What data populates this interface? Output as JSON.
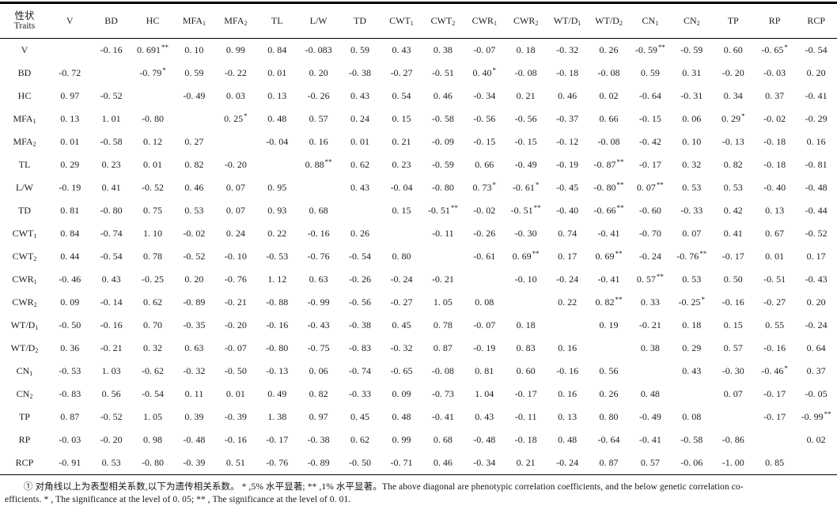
{
  "page": {
    "background": "#ffffff",
    "text_color": "#1c1c1c",
    "rule_color": "#000000"
  },
  "table": {
    "corner": {
      "cn": "性状",
      "en": "Traits"
    },
    "columns": [
      "V",
      "BD",
      "HC",
      "MFA_1",
      "MFA_2",
      "TL",
      "L/W",
      "TD",
      "CWT_1",
      "CWT_2",
      "CWR_1",
      "CWR_2",
      "WT/D_1",
      "WT/D_2",
      "CN_1",
      "CN_2",
      "TP",
      "RP",
      "RCP"
    ],
    "rows": [
      {
        "label": "V",
        "cells": [
          "",
          "-0. 16",
          "0. 691**",
          "0. 10",
          "0. 99",
          "0. 84",
          "-0. 083",
          "0. 59",
          "0. 43",
          "0. 38",
          "-0. 07",
          "0. 18",
          "-0. 32",
          "0. 26",
          "-0. 59**",
          "-0. 59",
          "0. 60",
          "-0. 65*",
          "-0. 54"
        ]
      },
      {
        "label": "BD",
        "cells": [
          "-0. 72",
          "",
          "-0. 79*",
          "0. 59",
          "-0. 22",
          "0. 01",
          "0. 20",
          "-0. 38",
          "-0. 27",
          "-0. 51",
          "0. 40*",
          "-0. 08",
          "-0. 18",
          "-0. 08",
          "0. 59",
          "0. 31",
          "-0. 20",
          "-0. 03",
          "0. 20"
        ]
      },
      {
        "label": "HC",
        "cells": [
          "0. 97",
          "-0. 52",
          "",
          "-0. 49",
          "0. 03",
          "0. 13",
          "-0. 26",
          "0. 43",
          "0. 54",
          "0. 46",
          "-0. 34",
          "0. 21",
          "0. 46",
          "0. 02",
          "-0. 64",
          "-0. 31",
          "0. 34",
          "0. 37",
          "-0. 41"
        ]
      },
      {
        "label": "MFA_1",
        "cells": [
          "0. 13",
          "1. 01",
          "-0. 80",
          "",
          "0. 25*",
          "0. 48",
          "0. 57",
          "0. 24",
          "0. 15",
          "-0. 58",
          "-0. 56",
          "-0. 56",
          "-0. 37",
          "0. 66",
          "-0. 15",
          "0. 06",
          "0. 29*",
          "-0. 02",
          "-0. 29"
        ]
      },
      {
        "label": "MFA_2",
        "cells": [
          "0. 01",
          "-0. 58",
          "0. 12",
          "0. 27",
          "",
          "-0. 04",
          "0. 16",
          "0. 01",
          "0. 21",
          "-0. 09",
          "-0. 15",
          "-0. 15",
          "-0. 12",
          "-0. 08",
          "-0. 42",
          "0. 10",
          "-0. 13",
          "-0. 18",
          "0. 16"
        ]
      },
      {
        "label": "TL",
        "cells": [
          "0. 29",
          "0. 23",
          "0. 01",
          "0. 82",
          "-0. 20",
          "",
          "0. 88**",
          "0. 62",
          "0. 23",
          "-0. 59",
          "0. 66",
          "-0. 49",
          "-0. 19",
          "-0. 87**",
          "-0. 17",
          "0. 32",
          "0. 82",
          "-0. 18",
          "-0. 81"
        ]
      },
      {
        "label": "L/W",
        "cells": [
          "-0. 19",
          "0. 41",
          "-0. 52",
          "0. 46",
          "0. 07",
          "0. 95",
          "",
          "0. 43",
          "-0. 04",
          "-0. 80",
          "0. 73*",
          "-0. 61*",
          "-0. 45",
          "-0. 80**",
          "0. 07**",
          "0. 53",
          "0. 53",
          "-0. 40",
          "-0. 48"
        ]
      },
      {
        "label": "TD",
        "cells": [
          "0. 81",
          "-0. 80",
          "0. 75",
          "0. 53",
          "0. 07",
          "0. 93",
          "0. 68",
          "",
          "0. 15",
          "-0. 51**",
          "-0. 02",
          "-0. 51**",
          "-0. 40",
          "-0. 66**",
          "-0. 60",
          "-0. 33",
          "0. 42",
          "0. 13",
          "-0. 44"
        ]
      },
      {
        "label": "CWT_1",
        "cells": [
          "0. 84",
          "-0. 74",
          "1. 10",
          "-0. 02",
          "0. 24",
          "0. 22",
          "-0. 16",
          "0. 26",
          "",
          "-0. 11",
          "-0. 26",
          "-0. 30",
          "0. 74",
          "-0. 41",
          "-0. 70",
          "0. 07",
          "0. 41",
          "0. 67",
          "-0. 52"
        ]
      },
      {
        "label": "CWT_2",
        "cells": [
          "0. 44",
          "-0. 54",
          "0. 78",
          "-0. 52",
          "-0. 10",
          "-0. 53",
          "-0. 76",
          "-0. 54",
          "0. 80",
          "",
          "-0. 61",
          "0. 69**",
          "0. 17",
          "0. 69**",
          "-0. 24",
          "-0. 76**",
          "-0. 17",
          "0. 01",
          "0. 17"
        ]
      },
      {
        "label": "CWR_1",
        "cells": [
          "-0. 46",
          "0. 43",
          "-0. 25",
          "0. 20",
          "-0. 76",
          "1. 12",
          "0. 63",
          "-0. 26",
          "-0. 24",
          "-0. 21",
          "",
          "-0. 10",
          "-0. 24",
          "-0. 41",
          "0. 57**",
          "0. 53",
          "0. 50",
          "-0. 51",
          "-0. 43"
        ]
      },
      {
        "label": "CWR_2",
        "cells": [
          "0. 09",
          "-0. 14",
          "0. 62",
          "-0. 89",
          "-0. 21",
          "-0. 88",
          "-0. 99",
          "-0. 56",
          "-0. 27",
          "1. 05",
          "0. 08",
          "",
          "0. 22",
          "0. 82**",
          "0. 33",
          "-0. 25*",
          "-0. 16",
          "-0. 27",
          "0. 20"
        ]
      },
      {
        "label": "WT/D_1",
        "cells": [
          "-0. 50",
          "-0. 16",
          "0. 70",
          "-0. 35",
          "-0. 20",
          "-0. 16",
          "-0. 43",
          "-0. 38",
          "0. 45",
          "0. 78",
          "-0. 07",
          "0. 18",
          "",
          "0. 19",
          "-0. 21",
          "0. 18",
          "0. 15",
          "0. 55",
          "-0. 24"
        ]
      },
      {
        "label": "WT/D_2",
        "cells": [
          "0. 36",
          "-0. 21",
          "0. 32",
          "0. 63",
          "-0. 07",
          "-0. 80",
          "-0. 75",
          "-0. 83",
          "-0. 32",
          "0. 87",
          "-0. 19",
          "0. 83",
          "0. 16",
          "",
          "0. 38",
          "0. 29",
          "0. 57",
          "-0. 16",
          "0. 64"
        ]
      },
      {
        "label": "CN_1",
        "cells": [
          "-0. 53",
          "1. 03",
          "-0. 62",
          "-0. 32",
          "-0. 50",
          "-0. 13",
          "0. 06",
          "-0. 74",
          "-0. 65",
          "-0. 08",
          "0. 81",
          "0. 60",
          "-0. 16",
          "0. 56",
          "",
          "0. 43",
          "-0. 30",
          "-0. 46*",
          "0. 37"
        ]
      },
      {
        "label": "CN_2",
        "cells": [
          "-0. 83",
          "0. 56",
          "-0. 54",
          "0. 11",
          "0. 01",
          "0. 49",
          "0. 82",
          "-0. 33",
          "0. 09",
          "-0. 73",
          "1. 04",
          "-0. 17",
          "0. 16",
          "0. 26",
          "0. 48",
          "",
          "0. 07",
          "-0. 17",
          "-0. 05"
        ]
      },
      {
        "label": "TP",
        "cells": [
          "0. 87",
          "-0. 52",
          "1. 05",
          "0. 39",
          "-0. 39",
          "1. 38",
          "0. 97",
          "0. 45",
          "0. 48",
          "-0. 41",
          "0. 43",
          "-0. 11",
          "0. 13",
          "0. 80",
          "-0. 49",
          "0. 08",
          "",
          "-0. 17",
          "-0. 99**"
        ]
      },
      {
        "label": "RP",
        "cells": [
          "-0. 03",
          "-0. 20",
          "0. 98",
          "-0. 48",
          "-0. 16",
          "-0. 17",
          "-0. 38",
          "0. 62",
          "0. 99",
          "0. 68",
          "-0. 48",
          "-0. 18",
          "0. 48",
          "-0. 64",
          "-0. 41",
          "-0. 58",
          "-0. 86",
          "",
          "0. 02"
        ]
      },
      {
        "label": "RCP",
        "cells": [
          "-0. 91",
          "0. 53",
          "-0. 80",
          "-0. 39",
          "0. 51",
          "-0. 76",
          "-0. 89",
          "-0. 50",
          "-0. 71",
          "0. 46",
          "-0. 34",
          "0. 21",
          "-0. 24",
          "0. 87",
          "0. 57",
          "-0. 06",
          "-1. 00",
          "0. 85",
          ""
        ]
      }
    ]
  },
  "footnote": {
    "line1": "① 对角线以上为表型相关系数,以下为遗传相关系数。 * ,5% 水平显著; ** ,1% 水平显著。The above diagonal are phenotypic correlation coefficients, and the below genetic correlation co-",
    "line2": "efficients.  * , The significance at the level of 0. 05; ** , The significance at the level of 0. 01."
  }
}
